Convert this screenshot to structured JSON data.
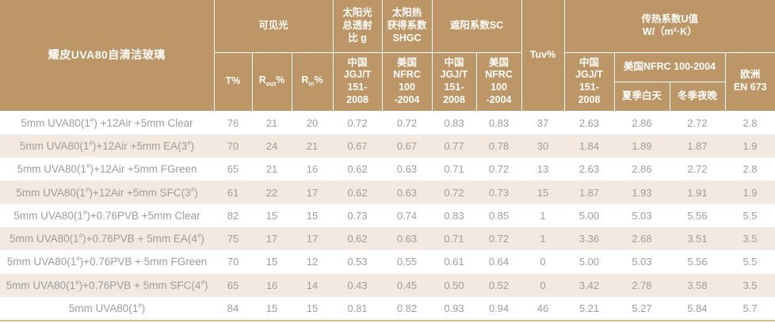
{
  "colors": {
    "header_bg": "#bd9667",
    "header_text": "#fdfdfb",
    "stripe_bg": "#f3e9e1",
    "row_bg": "#ffffff",
    "data_text": "#9d9d9d",
    "bottom_rule": "#d9b98c"
  },
  "header": {
    "product": "耀皮UVA80自清洁玻璃",
    "groups": {
      "visible_light": "可见光",
      "solar_g": "太阳光\n总透射\n比 g",
      "shgc": "太阳热\n获得系数\nSHGC",
      "sc": "遮阳系数SC",
      "tuv": "Tuv%",
      "u_value": "传热系数U值\nW/（m²·K）"
    },
    "sub": {
      "t": "T%",
      "r_base": "R",
      "r_out_sub": "out",
      "r_in_sub": "in",
      "percent": "%",
      "cn_standard": "中国\nJGJ/T\n151-\n2008",
      "us_standard": "美国\nNFRC\n100\n-2004",
      "us_standard_u": "美国NFRC 100-2004",
      "summer_day": "夏季白天",
      "winter_night": "冬季夜晚",
      "europe": "欧洲\nEN 673"
    }
  },
  "rows": [
    {
      "label": "5mm UVA80(1#) +12Air +5mm Clear",
      "values": [
        "76",
        "21",
        "20",
        "0.72",
        "0.72",
        "0.83",
        "0.83",
        "37",
        "2.63",
        "2.86",
        "2.72",
        "2.8"
      ]
    },
    {
      "label": "5mm UVA80(1#)+12Air +5mm EA(3#)",
      "values": [
        "70",
        "24",
        "21",
        "0.67",
        "0.67",
        "0.77",
        "0.78",
        "30",
        "1.84",
        "1.89",
        "1.87",
        "1.9"
      ]
    },
    {
      "label": "5mm UVA80(1#)+12Air +5mm FGreen",
      "values": [
        "65",
        "21",
        "16",
        "0.62",
        "0.63",
        "0.71",
        "0.72",
        "13",
        "2.63",
        "2.86",
        "2.72",
        "2.8"
      ]
    },
    {
      "label": "5mm UVA80(1#)+12Air +5mm SFC(3#)",
      "values": [
        "61",
        "22",
        "17",
        "0.62",
        "0.63",
        "0.72",
        "0.73",
        "15",
        "1.87",
        "1.93",
        "1.91",
        "1.9"
      ]
    },
    {
      "label": "5mm UVA80(1#)+0.76PVB +5mm Clear",
      "values": [
        "82",
        "15",
        "15",
        "0.73",
        "0.74",
        "0.83",
        "0.85",
        "1",
        "5.00",
        "5.03",
        "5.56",
        "5.5"
      ]
    },
    {
      "label": "5mm UVA80(1#)+0.76PVB + 5mm EA(4#)",
      "values": [
        "75",
        "17",
        "17",
        "0.62",
        "0.63",
        "0.71",
        "0.72",
        "1",
        "3.36",
        "2.68",
        "3.51",
        "3.5"
      ]
    },
    {
      "label": "5mm UVA80(1#)+0.76PVB + 5mm FGreen",
      "values": [
        "70",
        "15",
        "12",
        "0.53",
        "0.55",
        "0.61",
        "0.64",
        "0",
        "5.00",
        "5.03",
        "5.56",
        "5.5"
      ]
    },
    {
      "label": "5mm UVA80(1#)+0.76PVB + 5mm SFC(4#)",
      "values": [
        "65",
        "16",
        "14",
        "0.43",
        "0.45",
        "0.50",
        "0.52",
        "0",
        "3.42",
        "2.78",
        "3.58",
        "3.5"
      ]
    },
    {
      "label": "5mm UVA80(1#)",
      "values": [
        "84",
        "15",
        "15",
        "0.81",
        "0.82",
        "0.93",
        "0.94",
        "46",
        "5.21",
        "5.27",
        "5.84",
        "5.7"
      ]
    }
  ]
}
